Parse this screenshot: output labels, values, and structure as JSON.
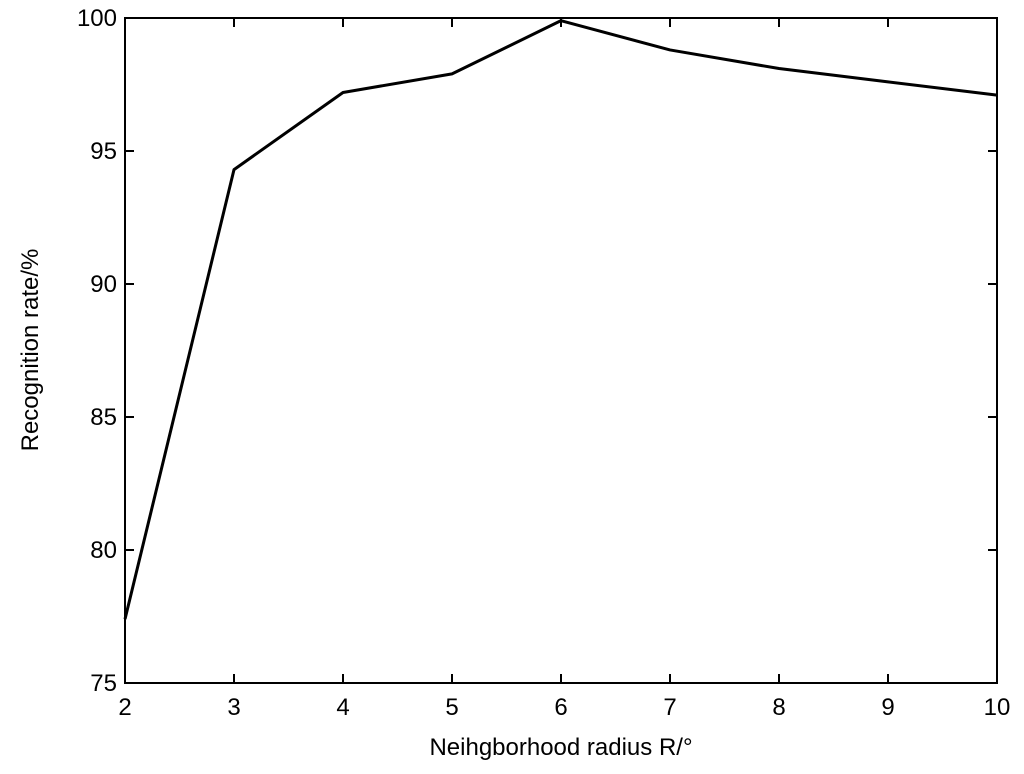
{
  "chart_data": {
    "type": "line",
    "x_label": "Neihgborhood radius R/°",
    "y_label": "Recognition rate/%",
    "x": [
      2,
      3,
      4,
      5,
      6,
      7,
      8,
      9,
      10
    ],
    "series": [
      {
        "color": "#000000",
        "values": [
          77.4,
          94.3,
          97.2,
          97.9,
          99.9,
          98.8,
          98.1,
          97.6,
          97.1
        ]
      }
    ],
    "xlim": [
      2,
      10
    ],
    "xticks": [
      2,
      3,
      4,
      5,
      6,
      7,
      8,
      9,
      10
    ],
    "ylim": [
      75,
      100
    ],
    "yticks": [
      75,
      80,
      85,
      90,
      95,
      100
    ],
    "grid": false
  }
}
